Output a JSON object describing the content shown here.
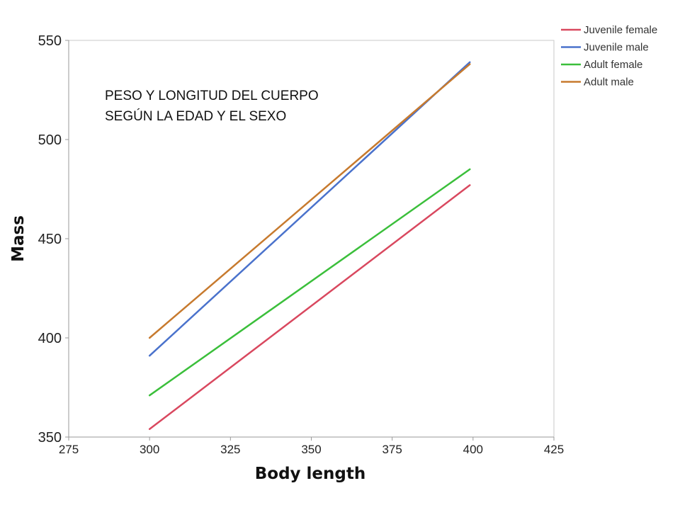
{
  "chart_data": {
    "type": "line",
    "title": "",
    "annotation": [
      "PESO Y LONGITUD DEL CUERPO",
      "SEGÚN LA EDAD Y EL SEXO"
    ],
    "xlabel": "Body length",
    "ylabel": "Mass",
    "xlim": [
      275,
      425
    ],
    "ylim": [
      350,
      550
    ],
    "xticks": [
      275,
      300,
      325,
      350,
      375,
      400,
      425
    ],
    "yticks": [
      350,
      400,
      450,
      500,
      550
    ],
    "grid": false,
    "legend_position": "top-right outside",
    "series": [
      {
        "name": "Juvenile female",
        "color": "#d9485f",
        "x": [
          300,
          399
        ],
        "y": [
          354,
          477
        ]
      },
      {
        "name": "Juvenile male",
        "color": "#4a72cc",
        "x": [
          300,
          399
        ],
        "y": [
          391,
          539
        ]
      },
      {
        "name": "Adult female",
        "color": "#3bbf3b",
        "x": [
          300,
          399
        ],
        "y": [
          371,
          485
        ]
      },
      {
        "name": "Adult male",
        "color": "#c77a2e",
        "x": [
          300,
          399
        ],
        "y": [
          400,
          538
        ]
      }
    ]
  }
}
